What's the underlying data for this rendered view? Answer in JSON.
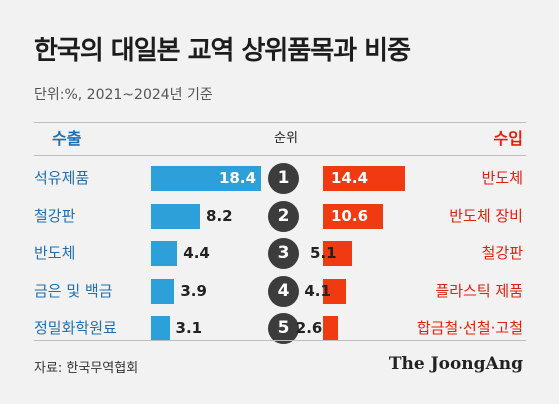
{
  "title": "한국의 대일본 교역 상위품목과 비중",
  "subtitle": "단위:%, 2021~2024년 기준",
  "headers": {
    "export": "수출",
    "rank": "순위",
    "import": "수입"
  },
  "source": "자료: 한국무역협회",
  "brand": "The JoongAng",
  "colors": {
    "export": "#2d9fd9",
    "import": "#f03a12",
    "export_text": "#1f6fb0",
    "import_text": "#e2200e"
  },
  "chart_data": {
    "type": "bar",
    "title": "한국의 대일본 교역 상위품목과 비중",
    "subtitle": "단위:%, 2021~2024년 기준",
    "ranks": [
      "1",
      "2",
      "3",
      "4",
      "5"
    ],
    "series": [
      {
        "name": "수출",
        "categories": [
          "석유제품",
          "철강판",
          "반도체",
          "금은 및 백금",
          "정밀화학원료"
        ],
        "values": [
          18.4,
          8.2,
          4.4,
          3.9,
          3.1
        ],
        "labels": [
          "18.4",
          "8.2",
          "4.4",
          "3.9",
          "3.1"
        ]
      },
      {
        "name": "수입",
        "categories": [
          "반도체",
          "반도체 장비",
          "철강판",
          "플라스틱 제품",
          "합금철·선철·고철"
        ],
        "values": [
          14.4,
          10.6,
          5.1,
          4.1,
          2.6
        ],
        "labels": [
          "14.4",
          "10.6",
          "5.1",
          "4.1",
          "2.6"
        ]
      }
    ]
  }
}
